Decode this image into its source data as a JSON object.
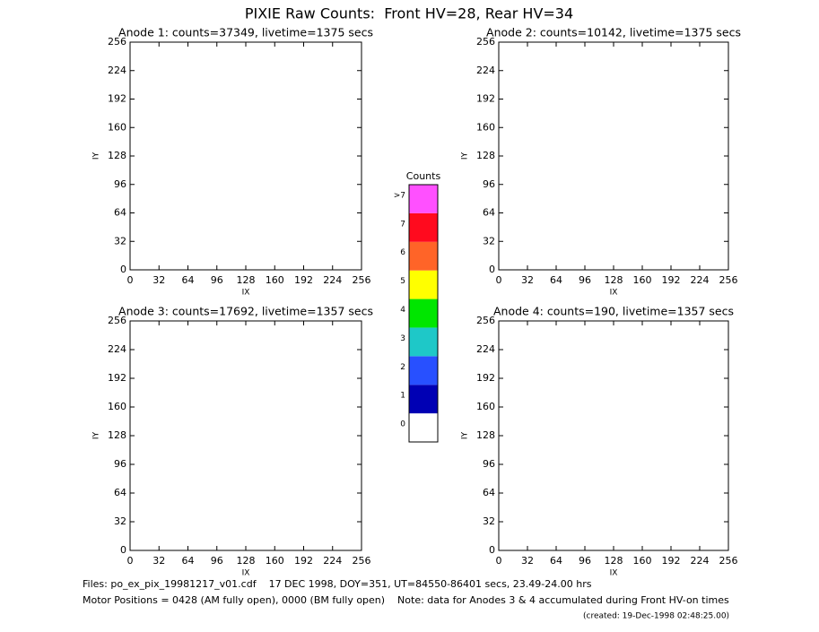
{
  "header": {
    "title": "PIXIE Raw Counts:  Front HV=28, Rear HV=34"
  },
  "chart_data": [
    {
      "type": "heatmap",
      "title": "Anode 1: counts=37349, livetime=1375 secs",
      "xlabel": "IX",
      "ylabel": "IY",
      "xlim": [
        0,
        256
      ],
      "ylim": [
        0,
        256
      ],
      "xticks": [
        0,
        32,
        64,
        96,
        128,
        160,
        192,
        224,
        256
      ],
      "yticks": [
        0,
        32,
        64,
        96,
        128,
        160,
        192,
        224,
        256
      ]
    },
    {
      "type": "heatmap",
      "title": "Anode 2: counts=10142, livetime=1375 secs",
      "xlabel": "IX",
      "ylabel": "IY",
      "xlim": [
        0,
        256
      ],
      "ylim": [
        0,
        256
      ],
      "xticks": [
        0,
        32,
        64,
        96,
        128,
        160,
        192,
        224,
        256
      ],
      "yticks": [
        0,
        32,
        64,
        96,
        128,
        160,
        192,
        224,
        256
      ]
    },
    {
      "type": "heatmap",
      "title": "Anode 3: counts=17692, livetime=1357 secs",
      "xlabel": "IX",
      "ylabel": "IY",
      "xlim": [
        0,
        256
      ],
      "ylim": [
        0,
        256
      ],
      "xticks": [
        0,
        32,
        64,
        96,
        128,
        160,
        192,
        224,
        256
      ],
      "yticks": [
        0,
        32,
        64,
        96,
        128,
        160,
        192,
        224,
        256
      ]
    },
    {
      "type": "heatmap",
      "title": "Anode 4: counts=190, livetime=1357 secs",
      "xlabel": "IX",
      "ylabel": "IY",
      "xlim": [
        0,
        256
      ],
      "ylim": [
        0,
        256
      ],
      "xticks": [
        0,
        32,
        64,
        96,
        128,
        160,
        192,
        224,
        256
      ],
      "yticks": [
        0,
        32,
        64,
        96,
        128,
        160,
        192,
        224,
        256
      ]
    },
    {
      "type": "colorbar",
      "title": "Counts",
      "categories": [
        "0",
        "1",
        "2",
        "3",
        "4",
        "5",
        "6",
        "7",
        ">7"
      ],
      "colors": [
        "#ffffff",
        "#0000b4",
        "#2850ff",
        "#1ec8c8",
        "#00e600",
        "#ffff00",
        "#ff6428",
        "#ff0a1e",
        "#ff50ff"
      ]
    }
  ],
  "footer": {
    "files": "Files: po_ex_pix_19981217_v01.cdf    17 DEC 1998, DOY=351, UT=84550-86401 secs, 23.49-24.00 hrs",
    "motor": "Motor Positions = 0428 (AM fully open), 0000 (BM fully open)    Note: data for Anodes 3 & 4 accumulated during Front HV-on times",
    "created": "(created: 19-Dec-1998 02:48:25.00)"
  }
}
